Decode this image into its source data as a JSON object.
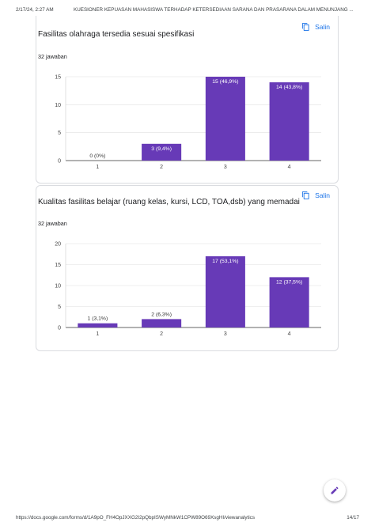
{
  "header": {
    "date": "2/17/24, 2:27 AM",
    "title": "KUESIONER KEPUASAN MAHASISWA TERHADAP KETERSEDIAAN SARANA DAN PRASARANA DALAM MENUNJANG ..."
  },
  "footer": {
    "url": "https://docs.google.com/forms/d/1A9pO_FH4OpJXXG2I2pQbpISWyMNkW1CPW89O69XsgHI/viewanalytics",
    "page": "14/17"
  },
  "colors": {
    "bar": "#673ab7",
    "accent": "#1a73e8",
    "grid": "#e0e0e0"
  },
  "questions": [
    {
      "copy_label": "Salin",
      "title": "Fasilitas olahraga tersedia sesuai spesifikasi",
      "responses": "32 jawaban"
    },
    {
      "copy_label": "Salin",
      "title": "Kualitas fasilitas belajar (ruang kelas, kursi, LCD, TOA,dsb) yang memadai",
      "responses": "32 jawaban"
    }
  ],
  "chart_data": [
    {
      "type": "bar",
      "categories": [
        "1",
        "2",
        "3",
        "4"
      ],
      "values": [
        0,
        3,
        15,
        14
      ],
      "data_labels": [
        "0 (0%)",
        "3 (9,4%)",
        "15 (46,9%)",
        "14 (43,8%)"
      ],
      "yticks": [
        0,
        5,
        10,
        15
      ],
      "ylim": [
        0,
        15
      ],
      "grid": true
    },
    {
      "type": "bar",
      "categories": [
        "1",
        "2",
        "3",
        "4"
      ],
      "values": [
        1,
        2,
        17,
        12
      ],
      "data_labels": [
        "1 (3,1%)",
        "2 (6,3%)",
        "17 (53,1%)",
        "12 (37,5%)"
      ],
      "yticks": [
        0,
        5,
        10,
        15,
        20
      ],
      "ylim": [
        0,
        20
      ],
      "grid": true
    }
  ]
}
